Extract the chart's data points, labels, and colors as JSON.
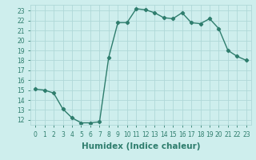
{
  "x": [
    0,
    1,
    2,
    3,
    4,
    5,
    6,
    7,
    8,
    9,
    10,
    11,
    12,
    13,
    14,
    15,
    16,
    17,
    18,
    19,
    20,
    21,
    22,
    23
  ],
  "y": [
    15.1,
    15.0,
    14.7,
    13.1,
    12.2,
    11.7,
    11.7,
    11.8,
    18.3,
    21.8,
    21.8,
    23.2,
    23.1,
    22.8,
    22.3,
    22.2,
    22.8,
    21.8,
    21.7,
    22.2,
    21.2,
    19.0,
    18.4,
    18.0
  ],
  "line_color": "#2e7d6d",
  "marker": "D",
  "marker_size": 2.2,
  "linewidth": 1.0,
  "bg_color": "#ceeeed",
  "grid_color": "#b0d8d8",
  "xlabel": "Humidex (Indice chaleur)",
  "ylim": [
    11.5,
    23.6
  ],
  "xlim": [
    -0.5,
    23.5
  ],
  "yticks": [
    12,
    13,
    14,
    15,
    16,
    17,
    18,
    19,
    20,
    21,
    22,
    23
  ],
  "xticks": [
    0,
    1,
    2,
    3,
    4,
    5,
    6,
    7,
    8,
    9,
    10,
    11,
    12,
    13,
    14,
    15,
    16,
    17,
    18,
    19,
    20,
    21,
    22,
    23
  ],
  "tick_label_fontsize": 5.5,
  "xlabel_fontsize": 7.5
}
